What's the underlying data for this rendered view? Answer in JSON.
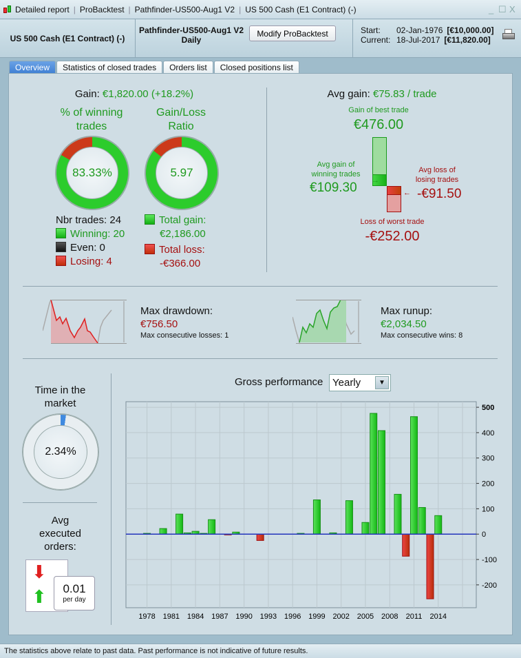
{
  "titlebar": {
    "segments": [
      "Detailed report",
      "ProBacktest",
      "Pathfinder-US500-Aug1 V2",
      "US 500 Cash (E1 Contract) (-)"
    ],
    "controls": [
      "_",
      "☐",
      "X"
    ]
  },
  "header": {
    "instrument": "US 500 Cash (E1 Contract) (-)",
    "system_name": "Pathfinder-US500-Aug1 V2",
    "timeframe": "Daily",
    "modify_button": "Modify ProBacktest",
    "start_label": "Start:",
    "start_date": "02-Jan-1976",
    "start_value": "[€10,000.00]",
    "current_label": "Current:",
    "current_date": "18-Jul-2017",
    "current_value": "[€11,820.00]",
    "print_icon": "printer-icon"
  },
  "tabs": [
    {
      "label": "Overview",
      "active": true
    },
    {
      "label": "Statistics of closed trades"
    },
    {
      "label": "Orders list"
    },
    {
      "label": "Closed positions list"
    }
  ],
  "gain": {
    "label": "Gain:",
    "value": "€1,820.00 (+18.2%)"
  },
  "winning": {
    "title_line1": "% of winning",
    "title_line2": "trades",
    "value": "83.33%",
    "fraction": 0.8333
  },
  "ratio": {
    "title_line1": "Gain/Loss",
    "title_line2": "Ratio",
    "value": "5.97",
    "gain_fraction": 0.8566
  },
  "trades": {
    "nbr": "Nbr trades: 24",
    "winning": "Winning: 20",
    "even": "Even: 0",
    "losing": "Losing: 4"
  },
  "totals": {
    "gain_label": "Total gain:",
    "gain_value": "€2,186.00",
    "loss_label": "Total loss:",
    "loss_value": "-€366.00"
  },
  "avg": {
    "label": "Avg gain:",
    "value": "€75.83 / trade",
    "best_label": "Gain of best trade",
    "best_value": "€476.00",
    "avg_win_label1": "Avg gain of",
    "avg_win_label2": "winning trades",
    "avg_win_value": "€109.30",
    "avg_loss_label1": "Avg loss of",
    "avg_loss_label2": "losing trades",
    "avg_loss_value": "-€91.50",
    "worst_label": "Loss of worst trade",
    "worst_value": "-€252.00"
  },
  "drawdown": {
    "label": "Max drawdown:",
    "value": "€756.50",
    "sub": "Max consecutive losses: 1"
  },
  "runup": {
    "label": "Max runup:",
    "value": "€2,034.50",
    "sub": "Max consecutive wins: 8"
  },
  "market": {
    "title_line1": "Time in the",
    "title_line2": "market",
    "value": "2.34%",
    "fraction": 0.0234
  },
  "orders": {
    "title_line1": "Avg",
    "title_line2": "executed",
    "title_line3": "orders:",
    "value": "0.01",
    "unit": "per day"
  },
  "perf": {
    "label": "Gross performance",
    "period": "Yearly"
  },
  "colors": {
    "positive": "#22c022",
    "negative": "#cc2a1a",
    "accent": "#3f7fd3",
    "zero_line": "#2233bb"
  },
  "chart_data": {
    "type": "bar",
    "title": "Gross performance",
    "xlabel": "",
    "ylabel": "",
    "x": [
      1978,
      1980,
      1982,
      1983,
      1984,
      1985,
      1986,
      1988,
      1989,
      1992,
      1997,
      1999,
      2001,
      2003,
      2005,
      2006,
      2007,
      2009,
      2010,
      2011,
      2012,
      2013,
      2014
    ],
    "values": [
      3,
      22,
      79,
      5,
      11,
      3,
      57,
      -3,
      8,
      -25,
      3,
      135,
      5,
      132,
      46,
      476,
      408,
      157,
      -87,
      463,
      105,
      -255,
      73
    ],
    "xticks": [
      "1978",
      "1981",
      "1984",
      "1987",
      "1990",
      "1993",
      "1996",
      "1999",
      "2002",
      "2005",
      "2008",
      "2011",
      "2014"
    ],
    "yticks": [
      "500",
      "400",
      "300",
      "200",
      "100",
      "0",
      "-100",
      "-200"
    ],
    "xlim": [
      1975.4,
      2018.7
    ],
    "ylim": [
      -290,
      522
    ],
    "grid": true,
    "y_axis_side": "right"
  },
  "status": "The statistics above relate to past data. Past performance is not indicative of future results."
}
